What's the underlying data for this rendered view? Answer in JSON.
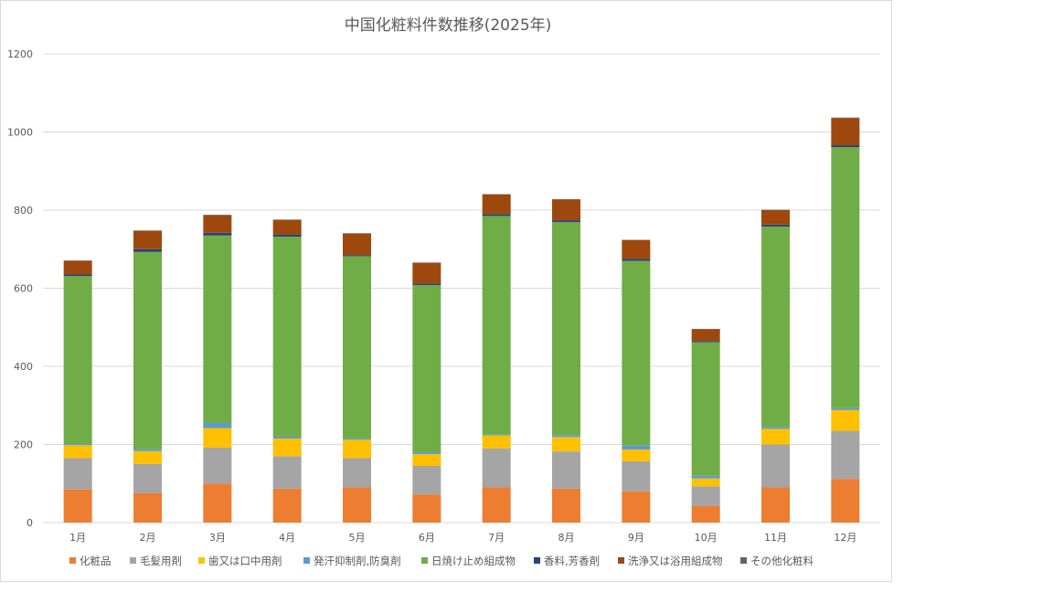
{
  "chart_data": {
    "type": "stacked-bar",
    "title": "中国化粧料件数推移(2025年)",
    "categories": [
      "1月",
      "2月",
      "3月",
      "4月",
      "5月",
      "6月",
      "7月",
      "8月",
      "9月",
      "10月",
      "11月",
      "12月"
    ],
    "ylim": [
      0,
      1200
    ],
    "yticks": [
      0,
      200,
      400,
      600,
      800,
      1000,
      1200
    ],
    "grid": true,
    "legend_position": "bottom",
    "series": [
      {
        "name": "化粧品",
        "color": "#ED7D31",
        "values": [
          85,
          75,
          100,
          87,
          90,
          72,
          90,
          87,
          80,
          43,
          90,
          112
        ]
      },
      {
        "name": "毛髪用剤",
        "color": "#A5A5A5",
        "values": [
          80,
          75,
          92,
          83,
          75,
          73,
          100,
          95,
          77,
          50,
          110,
          123
        ]
      },
      {
        "name": "歯又は口中用剤",
        "color": "#FFC000",
        "values": [
          33,
          33,
          50,
          45,
          47,
          30,
          33,
          37,
          30,
          20,
          40,
          53
        ]
      },
      {
        "name": "発汗抑制剤,防臭剤",
        "color": "#5B9BD5",
        "values": [
          3,
          5,
          13,
          5,
          3,
          5,
          2,
          5,
          10,
          7,
          5,
          5
        ]
      },
      {
        "name": "日焼け止め組成物",
        "color": "#70AD47",
        "values": [
          430,
          505,
          480,
          512,
          467,
          428,
          560,
          545,
          473,
          342,
          513,
          668
        ]
      },
      {
        "name": "香料,芳香剤",
        "color": "#264478",
        "values": [
          4,
          7,
          7,
          5,
          3,
          4,
          5,
          5,
          5,
          3,
          5,
          5
        ]
      },
      {
        "name": "洗浄又は浴用組成物",
        "color": "#9E480E",
        "values": [
          35,
          47,
          45,
          38,
          55,
          53,
          50,
          53,
          48,
          30,
          37,
          70
        ]
      },
      {
        "name": "その他化粧料",
        "color": "#636363",
        "values": [
          1,
          1,
          1,
          1,
          1,
          1,
          1,
          1,
          1,
          1,
          1,
          1
        ]
      }
    ]
  }
}
